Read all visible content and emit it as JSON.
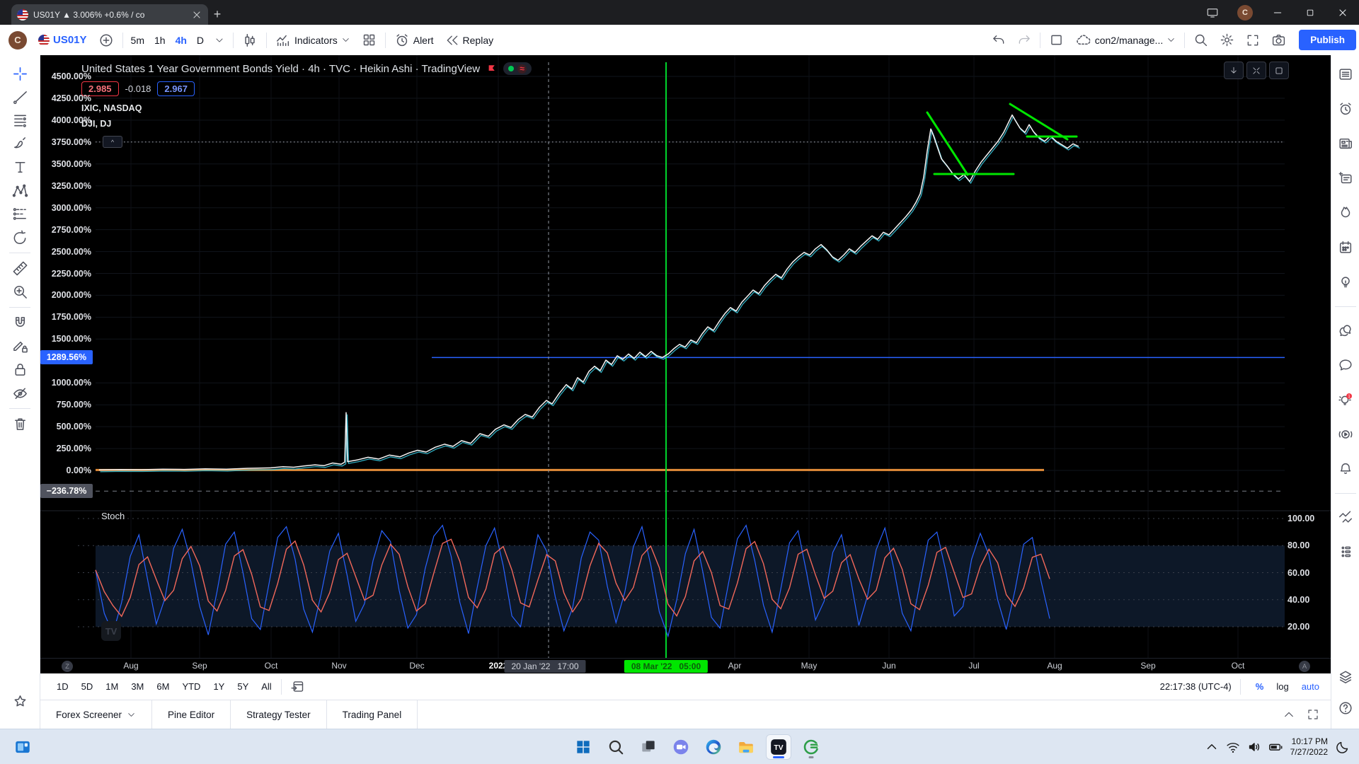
{
  "colors": {
    "accent": "#2962ff",
    "red": "#f23645",
    "bright_green": "#00e600",
    "orange": "#f0943c",
    "chart_bg": "#000000",
    "badge_gray": "#50535e",
    "taskbar_bg": "#dde6f2",
    "k_blue": "#2962ff",
    "d_salmon": "#f2685a"
  },
  "browser": {
    "tab_title": "US01Y ▲ 3.006% +0.6% / co",
    "new_tab_label": "+"
  },
  "toolbar": {
    "symbol": "US01Y",
    "timeframes": [
      "5m",
      "1h",
      "4h",
      "D"
    ],
    "active_timeframe": "4h",
    "indicators_label": "Indicators",
    "alert_label": "Alert",
    "replay_label": "Replay",
    "cloud_label": "con2/manage...",
    "publish_label": "Publish"
  },
  "legend": {
    "title": "United States 1 Year Government Bonds Yield · 4h · TVC · Heikin Ashi · TradingView",
    "open": "2.985",
    "change": "-0.018",
    "close": "2.967",
    "compare_1": "IXIC, NASDAQ",
    "compare_2": "DJI, DJ",
    "collapse_chip": "^"
  },
  "price_scale": {
    "ticks": [
      {
        "label": "4500.00%",
        "v": 4500
      },
      {
        "label": "4250.00%",
        "v": 4250
      },
      {
        "label": "4000.00%",
        "v": 4000
      },
      {
        "label": "3750.00%",
        "v": 3750
      },
      {
        "label": "3500.00%",
        "v": 3500
      },
      {
        "label": "3250.00%",
        "v": 3250
      },
      {
        "label": "3000.00%",
        "v": 3000
      },
      {
        "label": "2750.00%",
        "v": 2750
      },
      {
        "label": "2500.00%",
        "v": 2500
      },
      {
        "label": "2250.00%",
        "v": 2250
      },
      {
        "label": "2000.00%",
        "v": 2000
      },
      {
        "label": "1750.00%",
        "v": 1750
      },
      {
        "label": "1500.00%",
        "v": 1500
      },
      {
        "label": "1000.00%",
        "v": 1000
      },
      {
        "label": "750.00%",
        "v": 750
      },
      {
        "label": "500.00%",
        "v": 500
      },
      {
        "label": "250.00%",
        "v": 250
      },
      {
        "label": "0.00%",
        "v": 0
      }
    ],
    "current_badge": {
      "label": "1289.56%",
      "v": 1289.56
    },
    "low_badge": {
      "label": "−236.78%",
      "v": -236.78
    }
  },
  "time_scale": {
    "months": [
      {
        "label": "Aug",
        "x": 185
      },
      {
        "label": "Sep",
        "x": 282
      },
      {
        "label": "Oct",
        "x": 383
      },
      {
        "label": "Nov",
        "x": 479
      },
      {
        "label": "Dec",
        "x": 589
      },
      {
        "label": "2022",
        "x": 704
      },
      {
        "label": "Apr",
        "x": 1038
      },
      {
        "label": "May",
        "x": 1143
      },
      {
        "label": "Jun",
        "x": 1256
      },
      {
        "label": "Jul",
        "x": 1376
      },
      {
        "label": "Aug",
        "x": 1490
      },
      {
        "label": "Sep",
        "x": 1622
      },
      {
        "label": "Oct",
        "x": 1749
      }
    ],
    "left_marker": "Z",
    "right_marker": "A",
    "crosshair_badge": {
      "label": "20 Jan '22   17:00",
      "x": 770
    },
    "event_badge": {
      "label": "08 Mar '22   05:00",
      "x": 941
    }
  },
  "stoch_panel": {
    "label": "Stoch",
    "ticks": [
      {
        "label": "100.00",
        "v": 100
      },
      {
        "label": "80.00",
        "v": 80
      },
      {
        "label": "60.00",
        "v": 60
      },
      {
        "label": "40.00",
        "v": 40
      },
      {
        "label": "20.00",
        "v": 20
      }
    ]
  },
  "chart_data": {
    "type": "line",
    "title": "United States 1 Year Government Bonds Yield (compare: IXIC, DJI) — percent scale",
    "ylabel": "%",
    "ylim": [
      -350,
      4600
    ],
    "grid": true,
    "main_series": {
      "name": "IXIC, NASDAQ (percent)",
      "color": "#f5f5f5",
      "accent_color": "#35c0d6",
      "points": [
        [
          140,
          6
        ],
        [
          170,
          10
        ],
        [
          200,
          8
        ],
        [
          230,
          14
        ],
        [
          260,
          11
        ],
        [
          290,
          18
        ],
        [
          320,
          14
        ],
        [
          350,
          24
        ],
        [
          383,
          30
        ],
        [
          400,
          42
        ],
        [
          415,
          36
        ],
        [
          430,
          52
        ],
        [
          445,
          64
        ],
        [
          458,
          55
        ],
        [
          470,
          85
        ],
        [
          482,
          70
        ],
        [
          487,
          95
        ],
        [
          489,
          660
        ],
        [
          491,
          100
        ],
        [
          505,
          120
        ],
        [
          520,
          150
        ],
        [
          535,
          130
        ],
        [
          550,
          175
        ],
        [
          565,
          155
        ],
        [
          578,
          200
        ],
        [
          590,
          230
        ],
        [
          602,
          210
        ],
        [
          615,
          265
        ],
        [
          628,
          300
        ],
        [
          640,
          275
        ],
        [
          652,
          340
        ],
        [
          665,
          310
        ],
        [
          678,
          420
        ],
        [
          690,
          390
        ],
        [
          700,
          470
        ],
        [
          712,
          520
        ],
        [
          722,
          490
        ],
        [
          732,
          580
        ],
        [
          742,
          640
        ],
        [
          752,
          610
        ],
        [
          762,
          720
        ],
        [
          772,
          800
        ],
        [
          780,
          760
        ],
        [
          790,
          880
        ],
        [
          800,
          980
        ],
        [
          808,
          930
        ],
        [
          816,
          1060
        ],
        [
          824,
          1010
        ],
        [
          832,
          1130
        ],
        [
          840,
          1190
        ],
        [
          848,
          1140
        ],
        [
          856,
          1260
        ],
        [
          864,
          1210
        ],
        [
          872,
          1310
        ],
        [
          880,
          1270
        ],
        [
          888,
          1330
        ],
        [
          896,
          1280
        ],
        [
          904,
          1350
        ],
        [
          912,
          1300
        ],
        [
          920,
          1360
        ],
        [
          928,
          1310
        ],
        [
          936,
          1290
        ],
        [
          944,
          1330
        ],
        [
          952,
          1390
        ],
        [
          960,
          1440
        ],
        [
          968,
          1410
        ],
        [
          976,
          1490
        ],
        [
          984,
          1460
        ],
        [
          992,
          1560
        ],
        [
          1000,
          1640
        ],
        [
          1008,
          1600
        ],
        [
          1016,
          1700
        ],
        [
          1024,
          1790
        ],
        [
          1032,
          1860
        ],
        [
          1040,
          1820
        ],
        [
          1048,
          1920
        ],
        [
          1056,
          1990
        ],
        [
          1064,
          2060
        ],
        [
          1072,
          2020
        ],
        [
          1080,
          2110
        ],
        [
          1088,
          2180
        ],
        [
          1096,
          2240
        ],
        [
          1104,
          2200
        ],
        [
          1112,
          2300
        ],
        [
          1120,
          2380
        ],
        [
          1128,
          2440
        ],
        [
          1136,
          2490
        ],
        [
          1144,
          2460
        ],
        [
          1152,
          2530
        ],
        [
          1160,
          2580
        ],
        [
          1168,
          2520
        ],
        [
          1176,
          2440
        ],
        [
          1184,
          2400
        ],
        [
          1192,
          2460
        ],
        [
          1200,
          2530
        ],
        [
          1208,
          2490
        ],
        [
          1216,
          2560
        ],
        [
          1224,
          2620
        ],
        [
          1232,
          2680
        ],
        [
          1240,
          2640
        ],
        [
          1248,
          2720
        ],
        [
          1256,
          2690
        ],
        [
          1264,
          2760
        ],
        [
          1272,
          2830
        ],
        [
          1280,
          2900
        ],
        [
          1288,
          2980
        ],
        [
          1294,
          3060
        ],
        [
          1300,
          3160
        ],
        [
          1305,
          3350
        ],
        [
          1310,
          3650
        ],
        [
          1315,
          3900
        ],
        [
          1319,
          3820
        ],
        [
          1324,
          3700
        ],
        [
          1330,
          3560
        ],
        [
          1338,
          3480
        ],
        [
          1346,
          3390
        ],
        [
          1354,
          3330
        ],
        [
          1362,
          3380
        ],
        [
          1370,
          3300
        ],
        [
          1378,
          3420
        ],
        [
          1386,
          3520
        ],
        [
          1394,
          3600
        ],
        [
          1402,
          3680
        ],
        [
          1410,
          3760
        ],
        [
          1418,
          3860
        ],
        [
          1424,
          3960
        ],
        [
          1430,
          4060
        ],
        [
          1435,
          3990
        ],
        [
          1441,
          3910
        ],
        [
          1448,
          3860
        ],
        [
          1454,
          3950
        ],
        [
          1460,
          3870
        ],
        [
          1468,
          3800
        ],
        [
          1476,
          3760
        ],
        [
          1484,
          3820
        ],
        [
          1492,
          3760
        ],
        [
          1500,
          3720
        ],
        [
          1508,
          3680
        ],
        [
          1516,
          3730
        ],
        [
          1524,
          3700
        ]
      ]
    },
    "compare_series": {
      "name": "DJI, DJ (percent)",
      "color": "#f0943c",
      "flat_value": 5,
      "x_range": [
        135,
        1475
      ],
      "width": 3
    },
    "levels": [
      {
        "name": "current-price-line",
        "v": 1289.56,
        "color": "#2962ff",
        "style": "solid",
        "x_range": [
          610,
          1815
        ],
        "width": 1.5
      },
      {
        "name": "dotted-level",
        "v": 3750,
        "color": "#b2b5be",
        "style": "dotted",
        "x_range": [
          135,
          1815
        ],
        "width": 1
      },
      {
        "name": "low-dashed-level",
        "v": -236.78,
        "color": "#7a7e87",
        "style": "dashed",
        "x_range": [
          3,
          1815
        ],
        "width": 1
      }
    ],
    "vlines": [
      {
        "name": "crosshair-time",
        "x": 775,
        "color": "#9096a1",
        "style": "dashed",
        "width": 1,
        "label": "20 Jan '22 17:00"
      },
      {
        "name": "event-time",
        "x": 941,
        "color": "#00d42c",
        "style": "solid",
        "width": 2,
        "label": "08 Mar '22 05:00"
      }
    ],
    "drawings": {
      "color": "#00e600",
      "width": 3,
      "lines": [
        [
          1310,
          159,
          1367,
          247
        ],
        [
          1320,
          246,
          1432,
          246
        ],
        [
          1427,
          147,
          1508,
          197
        ],
        [
          1451,
          193,
          1521,
          193
        ]
      ]
    },
    "stoch": {
      "type": "line",
      "band": [
        20,
        80
      ],
      "range": [
        0,
        100
      ],
      "x_range": [
        135,
        1483
      ],
      "k_color": "#2962ff",
      "d_color": "#f2685a",
      "k_values": [
        62,
        30,
        15,
        38,
        72,
        88,
        55,
        22,
        41,
        78,
        92,
        68,
        35,
        14,
        46,
        81,
        90,
        60,
        26,
        18,
        52,
        86,
        94,
        70,
        33,
        16,
        44,
        76,
        89,
        58,
        24,
        37,
        69,
        91,
        83,
        47,
        19,
        29,
        63,
        87,
        95,
        72,
        38,
        15,
        49,
        80,
        93,
        65,
        28,
        20,
        56,
        88,
        76,
        42,
        17,
        34,
        71,
        90,
        84,
        50,
        23,
        45,
        79,
        94,
        66,
        31,
        13,
        40,
        74,
        92,
        61,
        27,
        19,
        53,
        85,
        95,
        69,
        36,
        16,
        48,
        82,
        91,
        59,
        25,
        39,
        75,
        88,
        57,
        21,
        43,
        77,
        93,
        64,
        30,
        17,
        51,
        84,
        90,
        62,
        28,
        35,
        70,
        89,
        73,
        40,
        18,
        47,
        81,
        86,
        54,
        26
      ]
    }
  },
  "range_toolbar": {
    "ranges": [
      "1D",
      "5D",
      "1M",
      "3M",
      "6M",
      "YTD",
      "1Y",
      "5Y",
      "All"
    ],
    "clock": "22:17:38 (UTC-4)",
    "percent_label": "%",
    "log_label": "log",
    "auto_label": "auto"
  },
  "panel_tabs": {
    "tabs": [
      "Forex Screener",
      "Pine Editor",
      "Strategy Tester",
      "Trading Panel"
    ],
    "dropdown_tab_index": 0
  },
  "taskbar": {
    "time": "10:17 PM",
    "date": "7/27/2022"
  },
  "icons": {
    "left_rail_groups": [
      [
        "crosshair",
        "trend-line",
        "fib-retracement",
        "brush",
        "text",
        "xabcd-pattern",
        "forecast",
        "arc"
      ],
      [
        "ruler",
        "zoom-in"
      ],
      [
        "magnet",
        "drawing-mode",
        "lock-drawings",
        "hide-drawings"
      ],
      [
        "remove-objects"
      ]
    ],
    "left_rail_bottom": [
      "favorites-star"
    ],
    "right_rail_groups": [
      [
        "watchlist",
        "alerts",
        "news",
        "data-window",
        "hotlist",
        "calendar",
        "ideas"
      ],
      [
        "public-chats",
        "private-chat",
        "minds",
        "streams",
        "notifications-bell"
      ],
      [
        "trading",
        "panel-grid"
      ]
    ],
    "right_rail_bottom": [
      "object-tree",
      "help"
    ],
    "pane_buttons": [
      "scroll-down",
      "collapse",
      "maximize-pane"
    ],
    "taskbar_left": [
      "widgets"
    ],
    "taskbar_center": [
      "start",
      "taskbar-search",
      "task-view",
      "chat",
      "edge",
      "explorer",
      "tradingview",
      "green-app"
    ],
    "taskbar_active": "tradingview",
    "tray": [
      "tray-chevron",
      "wifi",
      "volume",
      "battery"
    ],
    "after_clock": [
      "focus-moon"
    ]
  }
}
